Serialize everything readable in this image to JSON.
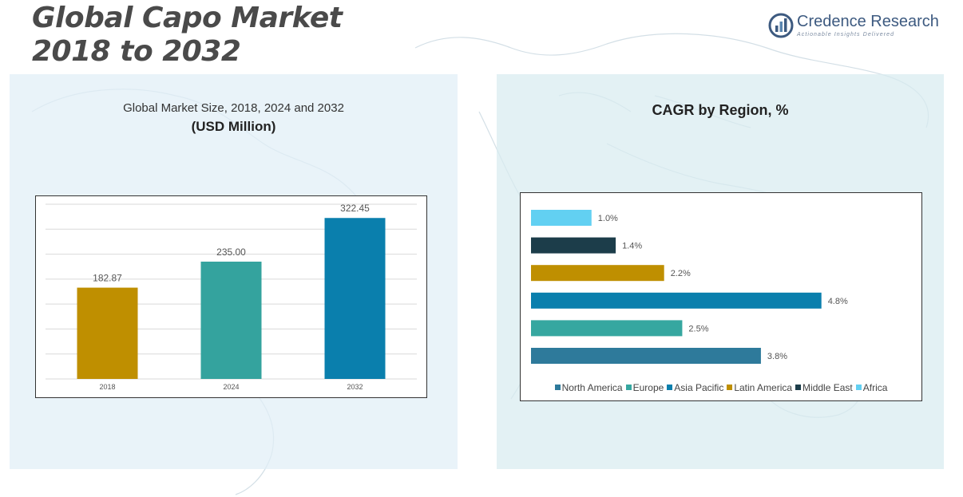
{
  "header": {
    "title_line1": "Global Capo Market",
    "title_line2": "2018 to 2032"
  },
  "logo": {
    "name": "Credence Research",
    "tagline": "Actionable Insights Delivered",
    "icon": "bar-chart-circle-icon",
    "color": "#3d5a80"
  },
  "left_panel": {
    "subtitle": "Global Market Size, 2018, 2024 and 2032",
    "unit": "(USD Million)"
  },
  "right_panel": {
    "title": "CAGR by Region, %"
  },
  "chart_data": [
    {
      "type": "bar",
      "categories": [
        "2018",
        "2024",
        "2032"
      ],
      "values": [
        182.87,
        235.0,
        322.45
      ],
      "data_labels": [
        "182.87",
        "235.00",
        "322.45"
      ],
      "colors": [
        "#bf8f00",
        "#34a39e",
        "#0a7fad"
      ],
      "ylim": [
        0,
        350
      ],
      "grid": true,
      "title": "Global Market Size, 2018, 2024 and 2032",
      "ylabel": "(USD Million)"
    },
    {
      "type": "bar",
      "orientation": "horizontal",
      "categories": [
        "North America",
        "Europe",
        "Asia Pacific",
        "Latin America",
        "Middle East",
        "Africa"
      ],
      "values": [
        3.8,
        2.5,
        4.8,
        2.2,
        1.4,
        1.0
      ],
      "data_labels": [
        "3.8%",
        "2.5%",
        "4.8%",
        "2.2%",
        "1.4%",
        "1.0%"
      ],
      "colors": [
        "#2e7a9b",
        "#36a7a0",
        "#0a7fad",
        "#bf8f00",
        "#1c3d4a",
        "#62d0f2"
      ],
      "xlim": [
        0,
        5.2
      ],
      "legend_position": "bottom",
      "title": "CAGR by Region, %"
    }
  ]
}
